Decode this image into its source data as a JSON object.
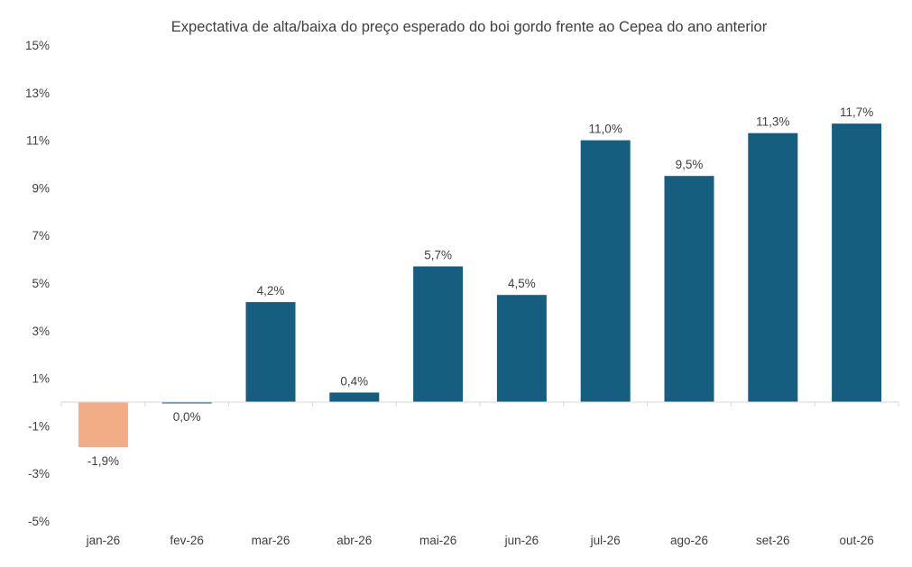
{
  "chart_data": {
    "type": "bar",
    "title": "Expectativa de alta/baixa do preço esperado do boi gordo frente ao Cepea do ano anterior",
    "categories": [
      "jan-26",
      "fev-26",
      "mar-26",
      "abr-26",
      "mai-26",
      "jun-26",
      "jul-26",
      "ago-26",
      "set-26",
      "out-26"
    ],
    "values": [
      -1.9,
      0.0,
      4.2,
      0.4,
      5.7,
      4.5,
      11.0,
      9.5,
      11.3,
      11.7
    ],
    "data_labels": [
      "-1,9%",
      "0,0%",
      "4,2%",
      "0,4%",
      "5,7%",
      "4,5%",
      "11,0%",
      "9,5%",
      "11,3%",
      "11,7%"
    ],
    "y_ticks": [
      15,
      13,
      11,
      9,
      7,
      5,
      3,
      1,
      -1,
      -3,
      -5
    ],
    "y_tick_labels": [
      "15%",
      "13%",
      "11%",
      "9%",
      "7%",
      "5%",
      "3%",
      "1%",
      "-1%",
      "-3%",
      "-5%"
    ],
    "ylim": [
      -5,
      15
    ],
    "xlabel": "",
    "ylabel": "",
    "grid": false,
    "legend": "none",
    "colors": {
      "positive": "#155e80",
      "negative": "#f2ac86",
      "axis": "#d9d9d9"
    }
  }
}
